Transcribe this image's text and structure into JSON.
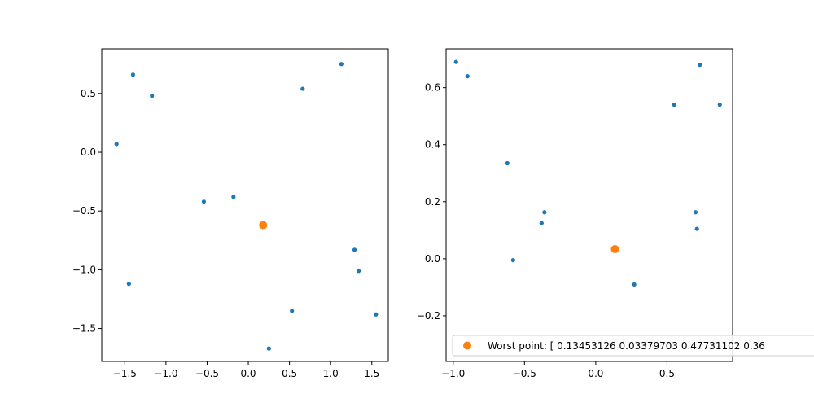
{
  "chart_data": [
    {
      "type": "scatter",
      "title": "",
      "xlabel": "",
      "ylabel": "",
      "xlim": [
        -1.78,
        1.7
      ],
      "ylim": [
        -1.78,
        0.88
      ],
      "xticks": [
        -1.5,
        -1.0,
        -0.5,
        0.0,
        0.5,
        1.0,
        1.5
      ],
      "xtick_labels": [
        "−1.5",
        "−1.0",
        "−0.5",
        "0.0",
        "0.5",
        "1.0",
        "1.5"
      ],
      "yticks": [
        -1.5,
        -1.0,
        -0.5,
        0.0,
        0.5
      ],
      "ytick_labels": [
        "−1.5",
        "−1.0",
        "−0.5",
        "0.0",
        "0.5"
      ],
      "series": [
        {
          "color": "#1f77b4",
          "marker": "small-dot",
          "x": [
            -1.4,
            -1.17,
            -1.6,
            -0.54,
            -0.18,
            0.66,
            1.13,
            1.29,
            1.34,
            -1.45,
            0.53,
            1.55,
            0.25
          ],
          "y": [
            0.66,
            0.48,
            0.07,
            -0.42,
            -0.38,
            0.54,
            0.75,
            -0.83,
            -1.01,
            -1.12,
            -1.35,
            -1.38,
            -1.67
          ]
        },
        {
          "color": "#ff7f0e",
          "marker": "large-dot",
          "x": [
            0.18
          ],
          "y": [
            -0.62
          ]
        }
      ]
    },
    {
      "type": "scatter",
      "title": "",
      "xlabel": "",
      "ylabel": "",
      "xlim": [
        -1.05,
        0.96
      ],
      "ylim": [
        -0.36,
        0.736
      ],
      "xticks": [
        -1.0,
        -0.5,
        0.0,
        0.5
      ],
      "xtick_labels": [
        "−1.0",
        "−0.5",
        "0.0",
        "0.5"
      ],
      "yticks": [
        -0.2,
        0.0,
        0.2,
        0.4,
        0.6
      ],
      "ytick_labels": [
        "−0.2",
        "0.0",
        "0.2",
        "0.4",
        "0.6"
      ],
      "series": [
        {
          "color": "#1f77b4",
          "marker": "small-dot",
          "x": [
            -0.98,
            -0.9,
            -0.62,
            -0.36,
            -0.38,
            -0.58,
            0.27,
            0.55,
            0.73,
            0.87,
            0.7,
            0.71
          ],
          "y": [
            0.69,
            0.64,
            0.335,
            0.163,
            0.125,
            -0.005,
            -0.09,
            0.54,
            0.68,
            0.54,
            0.163,
            0.105
          ]
        },
        {
          "name": "Worst point: [ 0.13453126  0.03379703  0.47731102  0.36",
          "color": "#ff7f0e",
          "marker": "large-dot",
          "x": [
            0.13453126
          ],
          "y": [
            0.03379703
          ]
        }
      ],
      "legend": {
        "placement": "lower-center",
        "label": "Worst point: [ 0.13453126  0.03379703  0.47731102  0.36"
      }
    }
  ]
}
